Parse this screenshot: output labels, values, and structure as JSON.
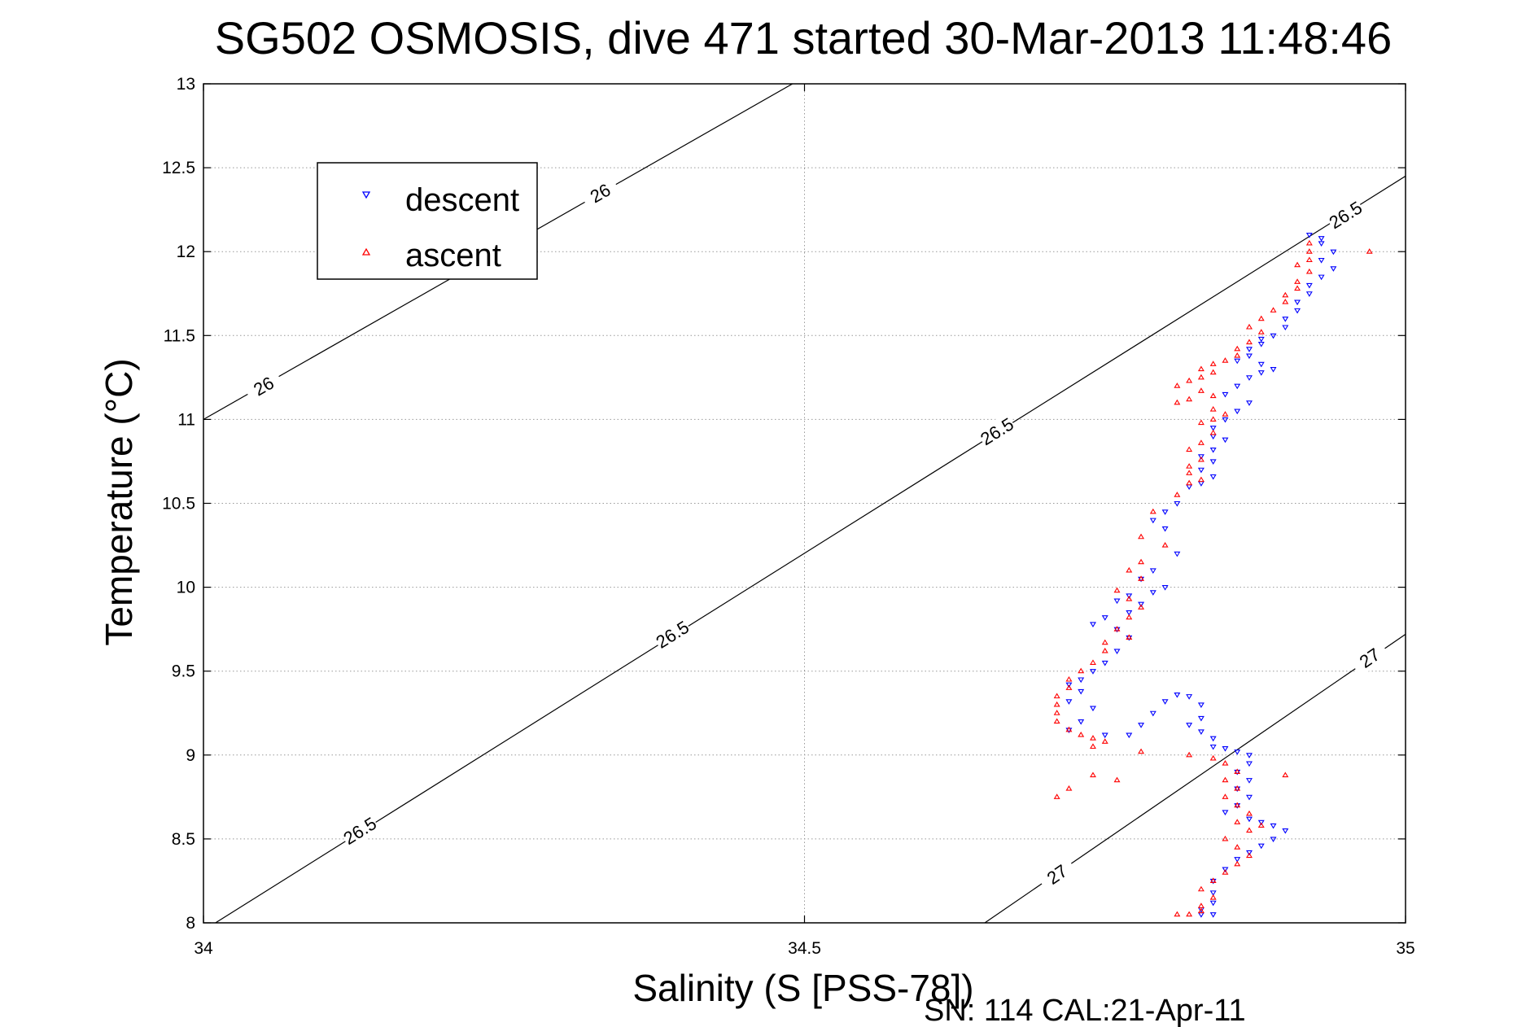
{
  "chart_data": {
    "type": "scatter",
    "title": "SG502 OSMOSIS, dive 471 started 30-Mar-2013 11:48:46",
    "xlabel": "Salinity (S [PSS-78])",
    "ylabel": "Temperature (°C)",
    "xlim": [
      34,
      35
    ],
    "ylim": [
      8,
      13
    ],
    "xticks": [
      34,
      34.5,
      35
    ],
    "xtick_labels": [
      "34",
      "34.5",
      "35"
    ],
    "yticks": [
      8,
      8.5,
      9,
      9.5,
      10,
      10.5,
      11,
      11.5,
      12,
      12.5,
      13
    ],
    "ytick_labels": [
      "8",
      "8.5",
      "9",
      "9.5",
      "10",
      "10.5",
      "11",
      "11.5",
      "12",
      "12.5",
      "13"
    ],
    "grid": true,
    "legend_position": "upper-left",
    "footer": "SN: 114  CAL:21-Apr-11",
    "colors": {
      "descent": "#0000ff",
      "ascent": "#ff0000",
      "contour": "#000000",
      "grid": "#999999"
    },
    "density_contours": [
      {
        "value": 26,
        "lines": [
          [
            [
              34.0,
              11.0
            ],
            [
              34.49,
              13.0
            ]
          ]
        ],
        "labels": [
          {
            "text": "26",
            "at": [
              34.05,
              11.2
            ]
          },
          {
            "text": "26",
            "at": [
              34.33,
              12.35
            ]
          }
        ]
      },
      {
        "value": 26.5,
        "lines": [
          [
            [
              34.01,
              8.0
            ],
            [
              35.0,
              12.45
            ]
          ]
        ],
        "labels": [
          {
            "text": "26.5",
            "at": [
              34.13,
              8.55
            ]
          },
          {
            "text": "26.5",
            "at": [
              34.39,
              9.72
            ]
          },
          {
            "text": "26.5",
            "at": [
              34.66,
              10.93
            ]
          },
          {
            "text": "26.5",
            "at": [
              34.95,
              12.22
            ]
          }
        ]
      },
      {
        "value": 27,
        "lines": [
          [
            [
              34.65,
              8.0
            ],
            [
              35.0,
              9.72
            ]
          ]
        ],
        "labels": [
          {
            "text": "27",
            "at": [
              34.71,
              8.29
            ]
          },
          {
            "text": "27",
            "at": [
              34.97,
              9.58
            ]
          }
        ]
      }
    ],
    "series": [
      {
        "name": "descent",
        "marker": "triangle-down",
        "points": [
          [
            34.92,
            12.1
          ],
          [
            34.93,
            12.08
          ],
          [
            34.93,
            12.05
          ],
          [
            34.94,
            12.0
          ],
          [
            34.93,
            11.95
          ],
          [
            34.94,
            11.9
          ],
          [
            34.93,
            11.85
          ],
          [
            34.92,
            11.8
          ],
          [
            34.92,
            11.75
          ],
          [
            34.91,
            11.7
          ],
          [
            34.91,
            11.65
          ],
          [
            34.9,
            11.6
          ],
          [
            34.9,
            11.55
          ],
          [
            34.89,
            11.5
          ],
          [
            34.88,
            11.48
          ],
          [
            34.88,
            11.45
          ],
          [
            34.87,
            11.42
          ],
          [
            34.87,
            11.38
          ],
          [
            34.86,
            11.35
          ],
          [
            34.88,
            11.33
          ],
          [
            34.89,
            11.3
          ],
          [
            34.88,
            11.28
          ],
          [
            34.87,
            11.25
          ],
          [
            34.86,
            11.2
          ],
          [
            34.85,
            11.15
          ],
          [
            34.87,
            11.1
          ],
          [
            34.86,
            11.05
          ],
          [
            34.85,
            11.0
          ],
          [
            34.84,
            10.95
          ],
          [
            34.84,
            10.9
          ],
          [
            34.85,
            10.88
          ],
          [
            34.84,
            10.82
          ],
          [
            34.83,
            10.78
          ],
          [
            34.84,
            10.75
          ],
          [
            34.83,
            10.7
          ],
          [
            34.84,
            10.66
          ],
          [
            34.83,
            10.62
          ],
          [
            34.82,
            10.6
          ],
          [
            34.81,
            10.5
          ],
          [
            34.8,
            10.45
          ],
          [
            34.79,
            10.4
          ],
          [
            34.8,
            10.35
          ],
          [
            34.81,
            10.2
          ],
          [
            34.79,
            10.1
          ],
          [
            34.78,
            10.05
          ],
          [
            34.8,
            10.0
          ],
          [
            34.79,
            9.97
          ],
          [
            34.77,
            9.95
          ],
          [
            34.76,
            9.92
          ],
          [
            34.78,
            9.9
          ],
          [
            34.77,
            9.85
          ],
          [
            34.75,
            9.82
          ],
          [
            34.74,
            9.78
          ],
          [
            34.76,
            9.75
          ],
          [
            34.77,
            9.7
          ],
          [
            34.76,
            9.62
          ],
          [
            34.75,
            9.55
          ],
          [
            34.74,
            9.5
          ],
          [
            34.73,
            9.45
          ],
          [
            34.72,
            9.42
          ],
          [
            34.73,
            9.38
          ],
          [
            34.72,
            9.32
          ],
          [
            34.74,
            9.28
          ],
          [
            34.73,
            9.2
          ],
          [
            34.72,
            9.15
          ],
          [
            34.75,
            9.12
          ],
          [
            34.77,
            9.12
          ],
          [
            34.78,
            9.18
          ],
          [
            34.79,
            9.25
          ],
          [
            34.8,
            9.32
          ],
          [
            34.81,
            9.36
          ],
          [
            34.82,
            9.35
          ],
          [
            34.83,
            9.3
          ],
          [
            34.83,
            9.22
          ],
          [
            34.82,
            9.18
          ],
          [
            34.83,
            9.14
          ],
          [
            34.84,
            9.1
          ],
          [
            34.84,
            9.05
          ],
          [
            34.85,
            9.04
          ],
          [
            34.86,
            9.02
          ],
          [
            34.87,
            9.0
          ],
          [
            34.87,
            8.95
          ],
          [
            34.86,
            8.9
          ],
          [
            34.87,
            8.85
          ],
          [
            34.86,
            8.8
          ],
          [
            34.87,
            8.75
          ],
          [
            34.86,
            8.7
          ],
          [
            34.85,
            8.66
          ],
          [
            34.87,
            8.62
          ],
          [
            34.88,
            8.6
          ],
          [
            34.89,
            8.58
          ],
          [
            34.9,
            8.55
          ],
          [
            34.89,
            8.5
          ],
          [
            34.88,
            8.46
          ],
          [
            34.87,
            8.42
          ],
          [
            34.86,
            8.38
          ],
          [
            34.85,
            8.32
          ],
          [
            34.84,
            8.25
          ],
          [
            34.84,
            8.18
          ],
          [
            34.84,
            8.12
          ],
          [
            34.83,
            8.08
          ],
          [
            34.84,
            8.05
          ],
          [
            34.83,
            8.05
          ]
        ]
      },
      {
        "name": "ascent",
        "marker": "triangle-up",
        "points": [
          [
            34.97,
            12.0
          ],
          [
            34.92,
            12.05
          ],
          [
            34.92,
            12.0
          ],
          [
            34.92,
            11.95
          ],
          [
            34.91,
            11.92
          ],
          [
            34.92,
            11.88
          ],
          [
            34.91,
            11.82
          ],
          [
            34.91,
            11.78
          ],
          [
            34.9,
            11.74
          ],
          [
            34.9,
            11.7
          ],
          [
            34.89,
            11.65
          ],
          [
            34.88,
            11.6
          ],
          [
            34.87,
            11.55
          ],
          [
            34.88,
            11.52
          ],
          [
            34.87,
            11.46
          ],
          [
            34.86,
            11.42
          ],
          [
            34.86,
            11.38
          ],
          [
            34.85,
            11.35
          ],
          [
            34.84,
            11.33
          ],
          [
            34.83,
            11.3
          ],
          [
            34.84,
            11.28
          ],
          [
            34.83,
            11.25
          ],
          [
            34.82,
            11.23
          ],
          [
            34.81,
            11.2
          ],
          [
            34.83,
            11.17
          ],
          [
            34.84,
            11.14
          ],
          [
            34.82,
            11.12
          ],
          [
            34.81,
            11.1
          ],
          [
            34.84,
            11.06
          ],
          [
            34.85,
            11.03
          ],
          [
            34.84,
            11.0
          ],
          [
            34.83,
            10.98
          ],
          [
            34.84,
            10.92
          ],
          [
            34.83,
            10.86
          ],
          [
            34.82,
            10.82
          ],
          [
            34.83,
            10.76
          ],
          [
            34.82,
            10.72
          ],
          [
            34.82,
            10.68
          ],
          [
            34.83,
            10.64
          ],
          [
            34.82,
            10.62
          ],
          [
            34.81,
            10.55
          ],
          [
            34.79,
            10.45
          ],
          [
            34.78,
            10.3
          ],
          [
            34.8,
            10.25
          ],
          [
            34.78,
            10.15
          ],
          [
            34.77,
            10.1
          ],
          [
            34.78,
            10.05
          ],
          [
            34.76,
            9.98
          ],
          [
            34.77,
            9.93
          ],
          [
            34.78,
            9.88
          ],
          [
            34.77,
            9.82
          ],
          [
            34.76,
            9.75
          ],
          [
            34.77,
            9.7
          ],
          [
            34.75,
            9.67
          ],
          [
            34.75,
            9.62
          ],
          [
            34.74,
            9.55
          ],
          [
            34.73,
            9.5
          ],
          [
            34.72,
            9.45
          ],
          [
            34.72,
            9.4
          ],
          [
            34.71,
            9.35
          ],
          [
            34.71,
            9.3
          ],
          [
            34.71,
            9.25
          ],
          [
            34.71,
            9.2
          ],
          [
            34.72,
            9.15
          ],
          [
            34.73,
            9.12
          ],
          [
            34.74,
            9.1
          ],
          [
            34.75,
            9.08
          ],
          [
            34.74,
            9.05
          ],
          [
            34.78,
            9.02
          ],
          [
            34.82,
            9.0
          ],
          [
            34.84,
            8.98
          ],
          [
            34.85,
            8.95
          ],
          [
            34.86,
            8.9
          ],
          [
            34.85,
            8.85
          ],
          [
            34.86,
            8.8
          ],
          [
            34.85,
            8.75
          ],
          [
            34.86,
            8.7
          ],
          [
            34.87,
            8.65
          ],
          [
            34.86,
            8.6
          ],
          [
            34.88,
            8.58
          ],
          [
            34.87,
            8.55
          ],
          [
            34.85,
            8.5
          ],
          [
            34.86,
            8.45
          ],
          [
            34.87,
            8.4
          ],
          [
            34.86,
            8.35
          ],
          [
            34.85,
            8.3
          ],
          [
            34.84,
            8.25
          ],
          [
            34.83,
            8.2
          ],
          [
            34.84,
            8.15
          ],
          [
            34.83,
            8.1
          ],
          [
            34.83,
            8.07
          ],
          [
            34.82,
            8.05
          ],
          [
            34.81,
            8.05
          ],
          [
            34.71,
            8.75
          ],
          [
            34.72,
            8.8
          ],
          [
            34.74,
            8.88
          ],
          [
            34.76,
            8.85
          ],
          [
            34.9,
            8.88
          ]
        ]
      }
    ]
  }
}
